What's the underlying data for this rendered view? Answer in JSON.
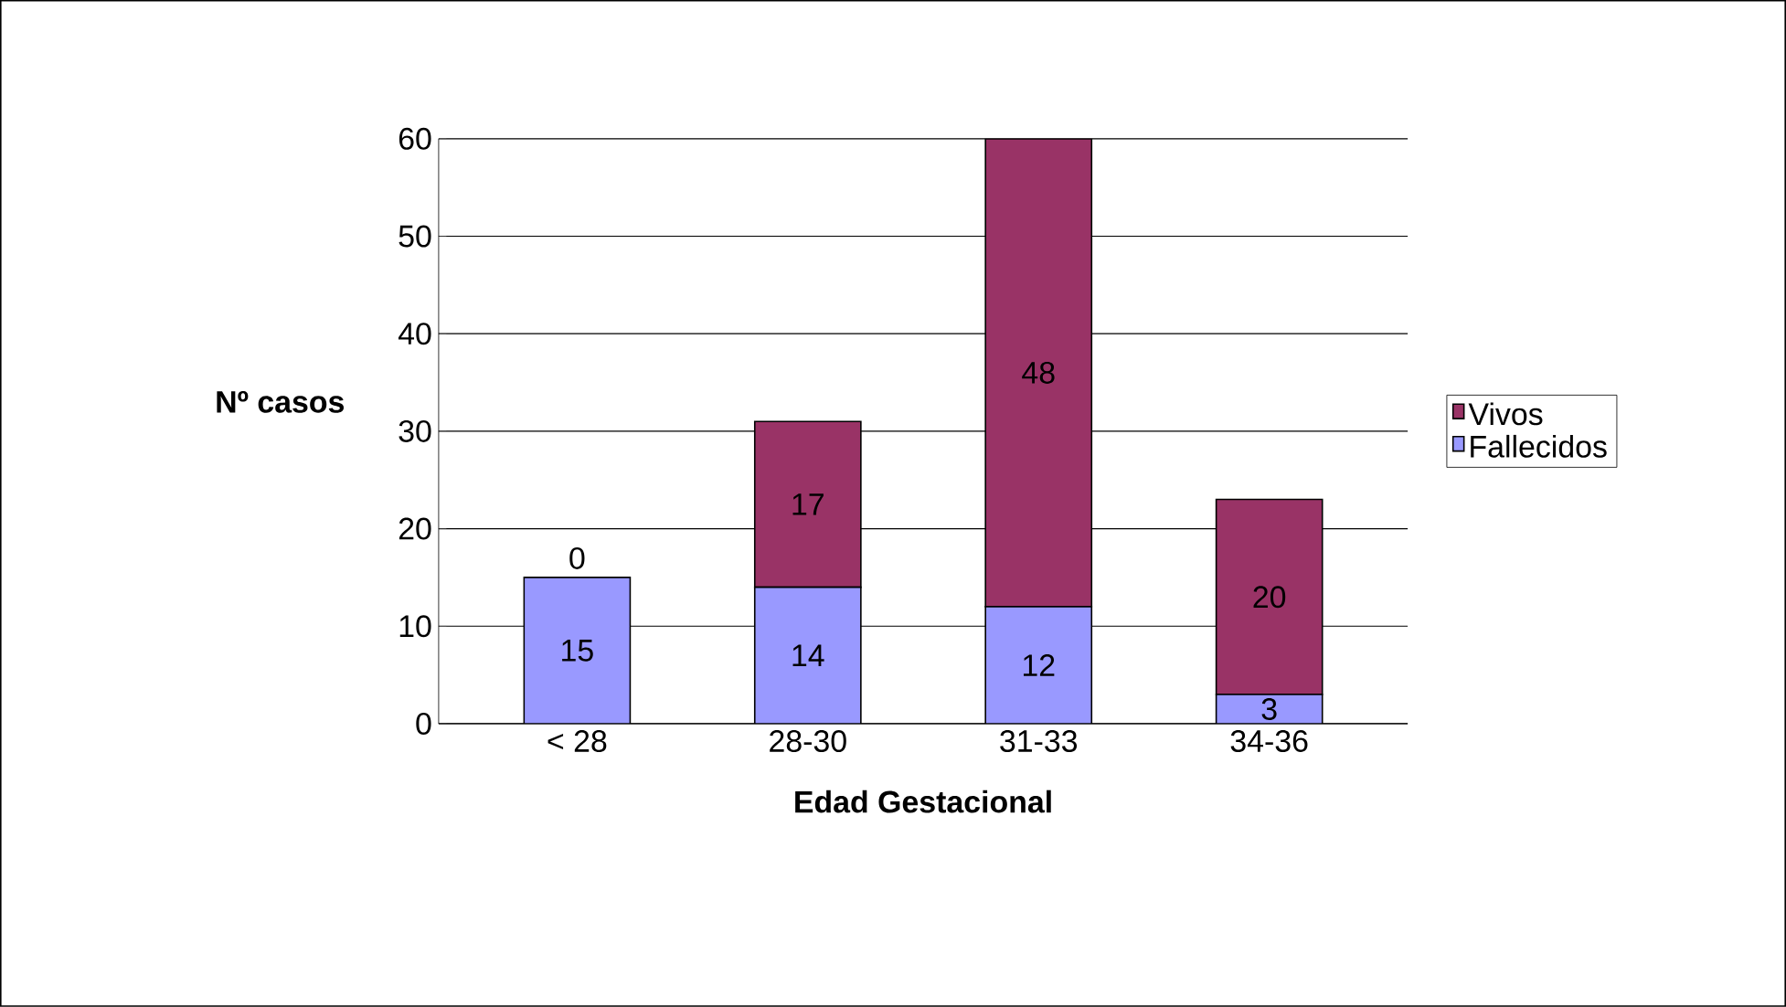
{
  "chart_data": {
    "type": "bar",
    "stacked": true,
    "xlabel": "Edad Gestacional",
    "ylabel": "Nº casos",
    "categories": [
      "< 28",
      "28-30",
      "31-33",
      "34-36"
    ],
    "series": [
      {
        "name": "Fallecidos",
        "color": "#9999ff",
        "values": [
          15,
          14,
          12,
          3
        ]
      },
      {
        "name": "Vivos",
        "color": "#993366",
        "values": [
          0,
          17,
          48,
          20
        ]
      }
    ],
    "ylim": [
      0,
      60
    ],
    "yticks": [
      0,
      10,
      20,
      30,
      40,
      50,
      60
    ],
    "grid": "y",
    "legend": "right",
    "data_labels": true
  }
}
